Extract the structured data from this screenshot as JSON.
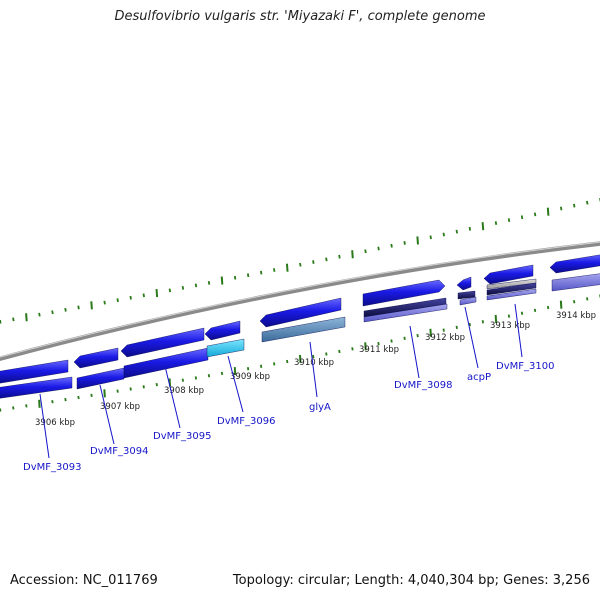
{
  "title": "Desulfovibrio vulgaris str. 'Miyazaki F', complete genome",
  "footer": {
    "accession": "Accession: NC_011769",
    "topology": "Topology: circular; Length: 4,040,304 bp; Genes: 3,256"
  },
  "colors": {
    "backbone": "#8a8a8a",
    "gene_blue": "#1a1ae6",
    "cyan": "#22c8f0",
    "steel": "#4a7fb0",
    "navy": "#14145a",
    "lavender": "#7070d8",
    "tick_green": "#2a7a1a",
    "label_blue": "#1515c8"
  },
  "kbp_labels": [
    "3906 kbp",
    "3907 kbp",
    "3908 kbp",
    "3909 kbp",
    "3910 kbp",
    "3911 kbp",
    "3912 kbp",
    "3913 kbp",
    "3914 kbp"
  ],
  "gene_labels": [
    "DvMF_3093",
    "DvMF_3094",
    "DvMF_3095",
    "DvMF_3096",
    "glyA",
    "DvMF_3098",
    "acpP",
    "DvMF_3100"
  ]
}
